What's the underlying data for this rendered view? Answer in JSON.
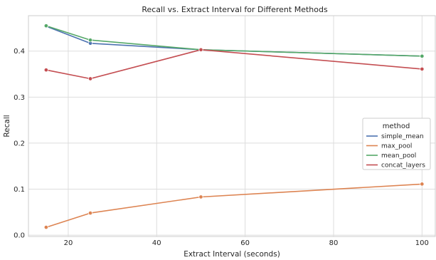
{
  "chart_data": {
    "type": "line",
    "title": "Recall vs. Extract Interval for Different Methods",
    "xlabel": "Extract Interval (seconds)",
    "ylabel": "Recall",
    "xlim": [
      11,
      103
    ],
    "ylim": [
      -0.003,
      0.477
    ],
    "xticks": [
      20,
      40,
      60,
      80,
      100
    ],
    "yticks": [
      0.0,
      0.1,
      0.2,
      0.3,
      0.4
    ],
    "ytick_labels": [
      "0.0",
      "0.1",
      "0.2",
      "0.3",
      "0.4"
    ],
    "x": [
      15,
      25,
      50,
      100
    ],
    "grid": true,
    "legend_title": "method",
    "legend_placement": "center-right",
    "series": [
      {
        "name": "simple_mean",
        "color": "#4c72b0",
        "values": [
          0.454,
          0.417,
          0.403,
          0.389
        ]
      },
      {
        "name": "max_pool",
        "color": "#dd8452",
        "values": [
          0.017,
          0.048,
          0.083,
          0.111
        ]
      },
      {
        "name": "mean_pool",
        "color": "#55a868",
        "values": [
          0.455,
          0.424,
          0.403,
          0.389
        ]
      },
      {
        "name": "concat_layers",
        "color": "#c44e52",
        "values": [
          0.359,
          0.34,
          0.403,
          0.361
        ]
      }
    ]
  }
}
